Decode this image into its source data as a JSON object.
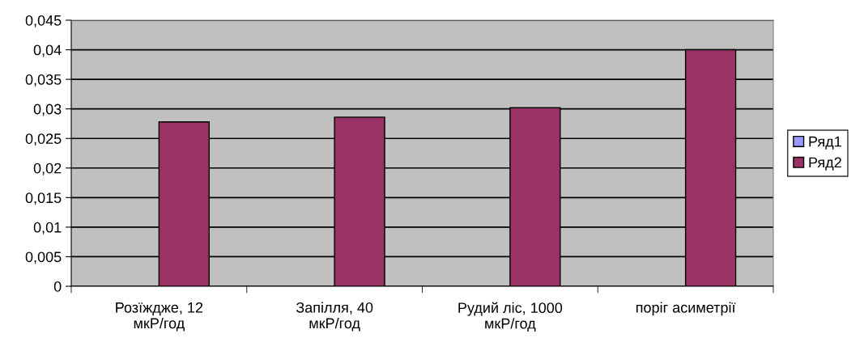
{
  "chart_data": {
    "type": "bar",
    "categories": [
      "Розїждже, 12\nмкР/год",
      "Запілля, 40\nмкР/год",
      "Рудий ліс, 1000\nмкР/год",
      "поріг асиметрії"
    ],
    "series": [
      {
        "name": "Ряд1",
        "color": "#9999ff",
        "values": [
          null,
          null,
          null,
          null
        ]
      },
      {
        "name": "Ряд2",
        "color": "#993366",
        "values": [
          0.0278,
          0.0286,
          0.0302,
          0.04
        ]
      }
    ],
    "ylim": [
      0,
      0.045
    ],
    "yticks": [
      {
        "value": 0,
        "label": "0"
      },
      {
        "value": 0.005,
        "label": "0,005"
      },
      {
        "value": 0.01,
        "label": "0,01"
      },
      {
        "value": 0.015,
        "label": "0,015"
      },
      {
        "value": 0.02,
        "label": "0,02"
      },
      {
        "value": 0.025,
        "label": "0,025"
      },
      {
        "value": 0.03,
        "label": "0,03"
      },
      {
        "value": 0.035,
        "label": "0,035"
      },
      {
        "value": 0.04,
        "label": "0,04"
      },
      {
        "value": 0.045,
        "label": "0,045"
      }
    ],
    "grid": "y",
    "legend": "right"
  }
}
